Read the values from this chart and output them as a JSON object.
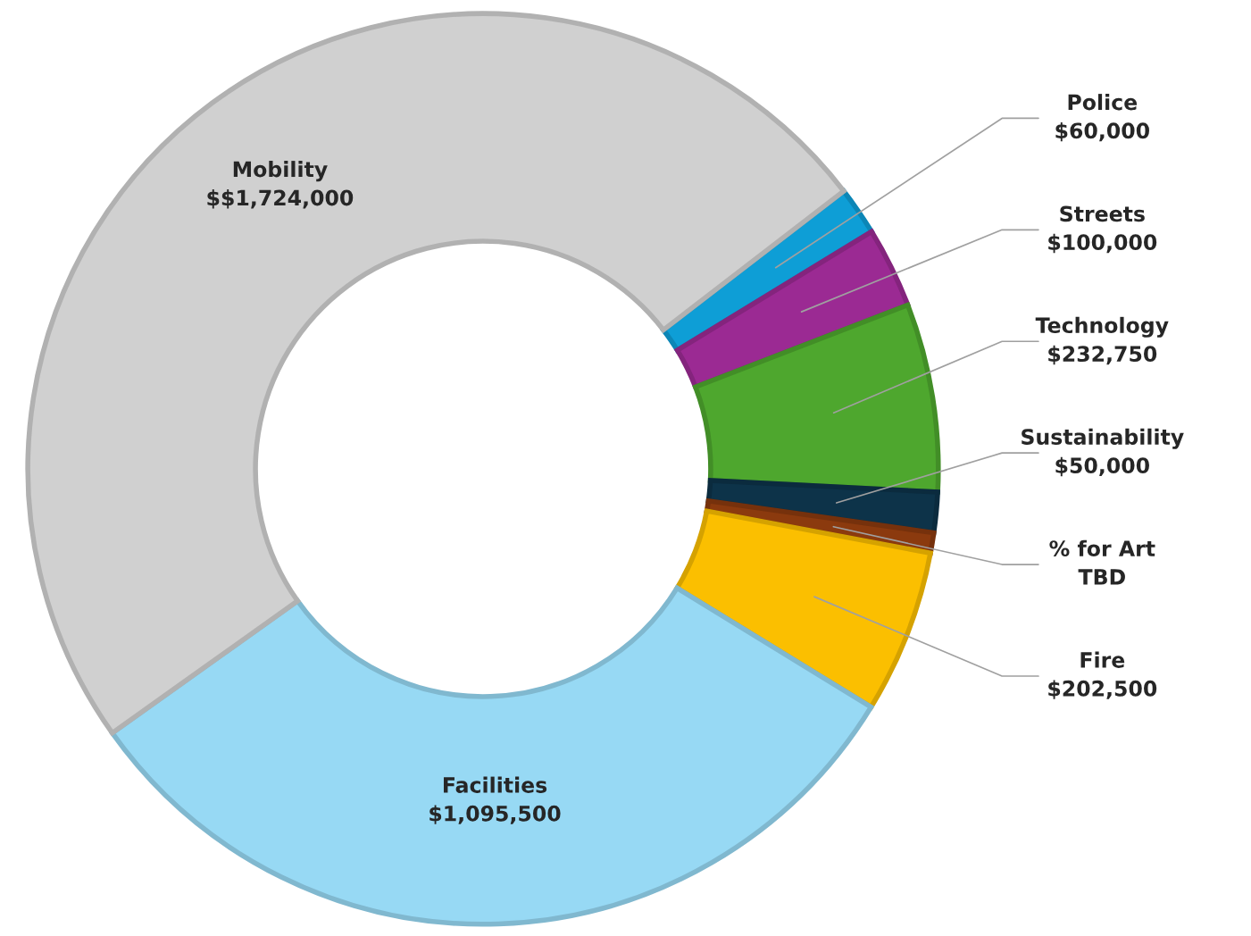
{
  "chart_data": {
    "type": "donut",
    "categories": [
      "Police",
      "Streets",
      "Technology",
      "Sustainability",
      "% for Art",
      "Fire",
      "Facilities",
      "Mobility"
    ],
    "values": [
      60000,
      100000,
      232750,
      50000,
      25000,
      202500,
      1095500,
      1724000
    ],
    "value_labels": [
      "$60,000",
      "$100,000",
      "$232,750",
      "$50,000",
      "TBD",
      "$202,500",
      "$1,095,500",
      "$$1,724,000"
    ],
    "colors": [
      "#0e9ed6",
      "#9b2a93",
      "#4ea72e",
      "#0d3349",
      "#8b3a0e",
      "#fbbf00",
      "#97d9f4",
      "#d0d0d0"
    ],
    "legend": false
  }
}
